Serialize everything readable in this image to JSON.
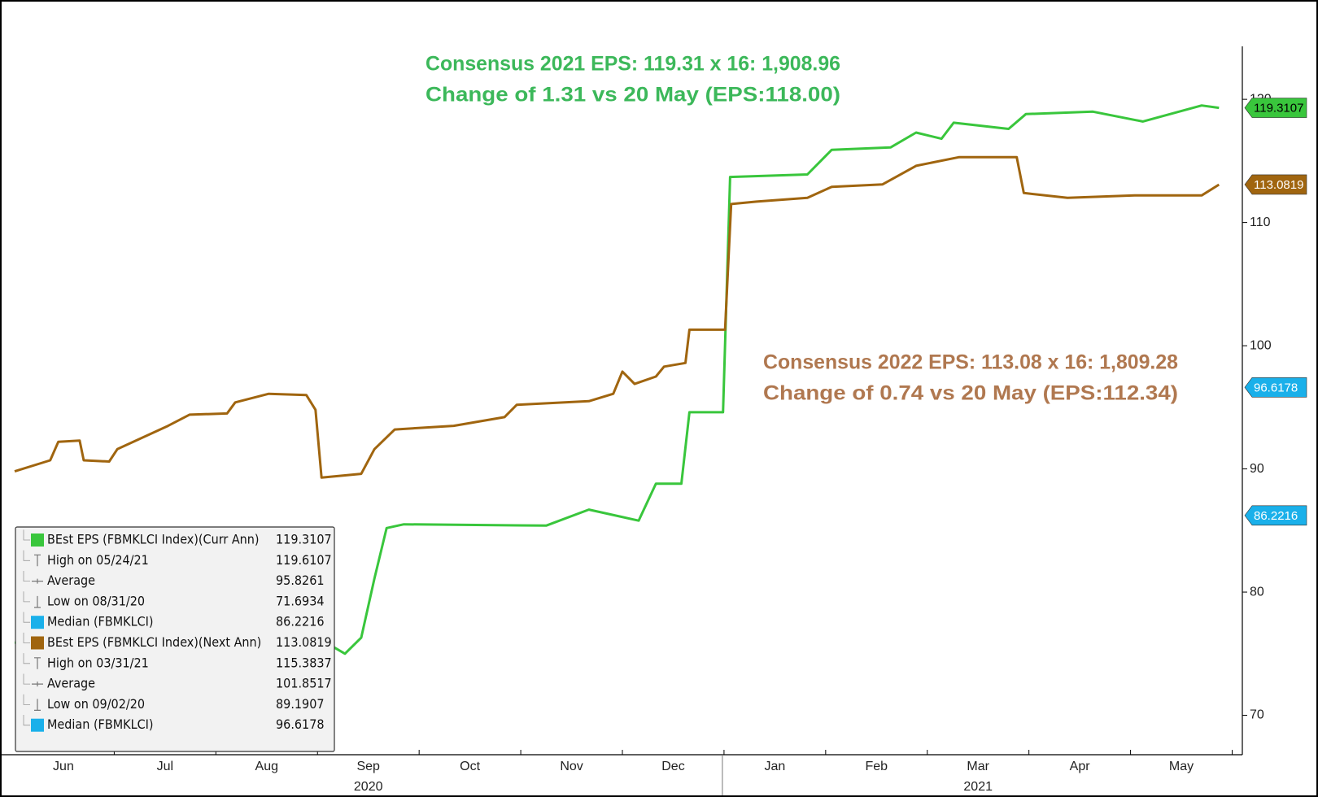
{
  "chart_data": {
    "type": "line",
    "xlim": [
      0,
      12.1
    ],
    "ylim": [
      66.8,
      124.3
    ],
    "yticks": [
      70,
      80,
      90,
      100,
      110,
      120
    ],
    "xticks": [
      {
        "value": 0.5,
        "label": "Jun"
      },
      {
        "value": 1.5,
        "label": "Jul"
      },
      {
        "value": 2.5,
        "label": "Aug"
      },
      {
        "value": 3.5,
        "label": "Sep"
      },
      {
        "value": 4.5,
        "label": "Oct"
      },
      {
        "value": 5.5,
        "label": "Nov"
      },
      {
        "value": 6.5,
        "label": "Dec"
      },
      {
        "value": 7.5,
        "label": "Jan"
      },
      {
        "value": 8.5,
        "label": "Feb"
      },
      {
        "value": 9.5,
        "label": "Mar"
      },
      {
        "value": 10.5,
        "label": "Apr"
      },
      {
        "value": 11.5,
        "label": "May"
      }
    ],
    "year_labels": [
      {
        "value": 3.5,
        "label": "2020"
      },
      {
        "value": 9.5,
        "label": "2021"
      }
    ],
    "series": [
      {
        "name": "BEst EPS (FBMKLCI Index)(Curr Ann)",
        "color": "#39c63c",
        "x": [
          0.02,
          2.77,
          3.02,
          3.27,
          3.43,
          3.56,
          3.68,
          3.85,
          5.25,
          5.67,
          6.16,
          6.33,
          6.58,
          6.66,
          6.99,
          7.06,
          7.82,
          8.06,
          8.64,
          8.89,
          9.14,
          9.26,
          9.8,
          9.97,
          10.63,
          11.12,
          11.7,
          11.87
        ],
        "values": [
          75.9,
          76.5,
          76.2,
          75.0,
          76.3,
          81.1,
          85.2,
          85.5,
          85.4,
          86.7,
          85.8,
          88.8,
          88.8,
          94.6,
          94.6,
          113.7,
          113.9,
          115.9,
          116.1,
          117.3,
          116.8,
          118.1,
          117.6,
          118.8,
          119.0,
          118.2,
          119.5,
          119.31
        ]
      },
      {
        "name": "BEst EPS (FBMKLCI Index)(Next Ann)",
        "color": "#a0650f",
        "x": [
          0.02,
          0.37,
          0.45,
          0.66,
          0.7,
          0.95,
          1.03,
          1.53,
          1.74,
          2.11,
          2.19,
          2.52,
          2.89,
          2.98,
          3.04,
          3.43,
          3.56,
          3.76,
          4.34,
          4.84,
          4.96,
          5.67,
          5.91,
          6.0,
          6.12,
          6.33,
          6.41,
          6.62,
          6.66,
          7.01,
          7.07,
          7.32,
          7.82,
          8.06,
          8.56,
          8.89,
          9.31,
          9.88,
          9.95,
          10.38,
          11.04,
          11.7,
          11.87
        ],
        "values": [
          89.8,
          90.7,
          92.2,
          92.3,
          90.7,
          90.6,
          91.6,
          93.5,
          94.4,
          94.5,
          95.4,
          96.1,
          96.0,
          94.8,
          89.3,
          89.6,
          91.6,
          93.2,
          93.5,
          94.2,
          95.2,
          95.5,
          96.1,
          97.9,
          96.9,
          97.5,
          98.3,
          98.6,
          101.3,
          101.3,
          111.5,
          111.7,
          112.0,
          112.9,
          113.1,
          114.6,
          115.3,
          115.3,
          112.4,
          112.0,
          112.2,
          112.2,
          113.08
        ]
      }
    ],
    "value_tags": [
      {
        "value": 119.3107,
        "color": "#39c63c",
        "text_color": "#000000"
      },
      {
        "value": 113.0819,
        "color": "#a0650f",
        "text_color": "#ffffff"
      },
      {
        "value": 96.6178,
        "color": "#1ab0ea",
        "text_color": "#ffffff"
      },
      {
        "value": 86.2216,
        "color": "#1ab0ea",
        "text_color": "#ffffff"
      }
    ],
    "annotations": [
      {
        "lines": [
          "Consensus 2021 EPS: 119.31 x 16: 1,908.96",
          "Change of 1.31 vs 20 May (EPS:118.00)"
        ],
        "color": "#3cb85a"
      },
      {
        "lines": [
          "Consensus 2022 EPS: 113.08 x 16: 1,809.28",
          "Change of 0.74 vs 20 May (EPS:112.34)"
        ],
        "color": "#b07850"
      }
    ],
    "legend": [
      {
        "label": "BEst EPS (FBMKLCI Index)(Curr Ann)",
        "value": 119.3107,
        "swatch": "#39c63c"
      },
      {
        "label": "High on 05/24/21",
        "value": 119.6107,
        "marker": "high"
      },
      {
        "label": "Average",
        "value": 95.8261,
        "marker": "avg"
      },
      {
        "label": "Low on 08/31/20",
        "value": 71.6934,
        "marker": "low"
      },
      {
        "label": "Median (FBMKLCI)",
        "value": 86.2216,
        "swatch": "#1ab0ea"
      },
      {
        "label": "BEst EPS (FBMKLCI Index)(Next Ann)",
        "value": 113.0819,
        "swatch": "#a0650f"
      },
      {
        "label": "High on 03/31/21",
        "value": 115.3837,
        "marker": "high"
      },
      {
        "label": "Average",
        "value": 101.8517,
        "marker": "avg"
      },
      {
        "label": "Low on 09/02/20",
        "value": 89.1907,
        "marker": "low"
      },
      {
        "label": "Median (FBMKLCI)",
        "value": 96.6178,
        "swatch": "#1ab0ea"
      }
    ]
  }
}
